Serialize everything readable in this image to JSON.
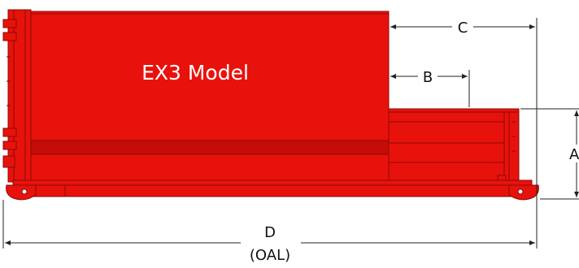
{
  "model_label": "EX3 Model",
  "dimensions": {
    "a": "A",
    "b": "B",
    "c": "C",
    "d": "D",
    "d_note": "(OAL)"
  },
  "colors": {
    "body_red": "#e8120c",
    "stripe_red": "#c40c08",
    "outline": "#8a0a06",
    "dimension_line": "#222222"
  }
}
